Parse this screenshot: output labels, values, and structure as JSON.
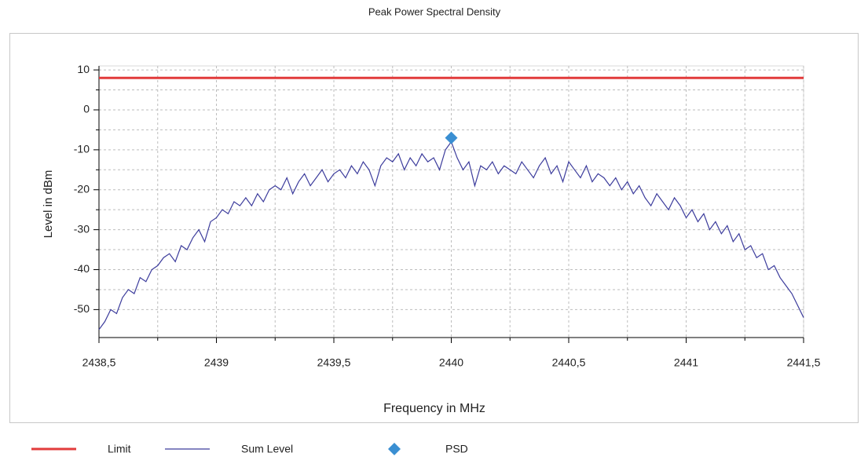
{
  "chart_data": {
    "type": "line",
    "title": "Peak Power Spectral Density",
    "xlabel": "Frequency in MHz",
    "ylabel": "Level in dBm",
    "xlim": [
      2438.5,
      2441.5
    ],
    "ylim": [
      -57,
      11
    ],
    "xticks": [
      {
        "value": 2438.5,
        "label": "2438,5"
      },
      2439,
      {
        "value": 2439.5,
        "label": "2439,5"
      },
      2440,
      {
        "value": 2440.5,
        "label": "2440,5"
      },
      2441,
      {
        "value": 2441.5,
        "label": "2441,5"
      }
    ],
    "yticks": [
      10,
      0,
      -10,
      -20,
      -30,
      -40,
      -50
    ],
    "grid": true,
    "legend": "bottom",
    "series": [
      {
        "name": "Limit",
        "color": "#e23b3b",
        "marker": "none",
        "x": [
          2438.5,
          2441.5
        ],
        "values": [
          8,
          8
        ]
      },
      {
        "name": "Sum Level",
        "color": "#3c3c9c",
        "marker": "none",
        "x": [
          2438.5,
          2438.525,
          2438.55,
          2438.575,
          2438.6,
          2438.625,
          2438.65,
          2438.675,
          2438.7,
          2438.725,
          2438.75,
          2438.775,
          2438.8,
          2438.825,
          2438.85,
          2438.875,
          2438.9,
          2438.925,
          2438.95,
          2438.975,
          2439,
          2439.025,
          2439.05,
          2439.075,
          2439.1,
          2439.125,
          2439.15,
          2439.175,
          2439.2,
          2439.225,
          2439.25,
          2439.275,
          2439.3,
          2439.325,
          2439.35,
          2439.375,
          2439.4,
          2439.425,
          2439.45,
          2439.475,
          2439.5,
          2439.525,
          2439.55,
          2439.575,
          2439.6,
          2439.625,
          2439.65,
          2439.675,
          2439.7,
          2439.725,
          2439.75,
          2439.775,
          2439.8,
          2439.825,
          2439.85,
          2439.875,
          2439.9,
          2439.925,
          2439.95,
          2439.975,
          2440,
          2440.025,
          2440.05,
          2440.075,
          2440.1,
          2440.125,
          2440.15,
          2440.175,
          2440.2,
          2440.225,
          2440.25,
          2440.275,
          2440.3,
          2440.325,
          2440.35,
          2440.375,
          2440.4,
          2440.425,
          2440.45,
          2440.475,
          2440.5,
          2440.525,
          2440.55,
          2440.575,
          2440.6,
          2440.625,
          2440.65,
          2440.675,
          2440.7,
          2440.725,
          2440.75,
          2440.775,
          2440.8,
          2440.825,
          2440.85,
          2440.875,
          2440.9,
          2440.925,
          2440.95,
          2440.975,
          2441,
          2441.025,
          2441.05,
          2441.075,
          2441.1,
          2441.125,
          2441.15,
          2441.175,
          2441.2,
          2441.225,
          2441.25,
          2441.275,
          2441.3,
          2441.325,
          2441.35,
          2441.375,
          2441.4,
          2441.425,
          2441.45,
          2441.475,
          2441.5
        ],
        "values": [
          -55,
          -53,
          -50,
          -51,
          -47,
          -45,
          -46,
          -42,
          -43,
          -40,
          -39,
          -37,
          -36,
          -38,
          -34,
          -35,
          -32,
          -30,
          -33,
          -28,
          -27,
          -25,
          -26,
          -23,
          -24,
          -22,
          -24,
          -21,
          -23,
          -20,
          -19,
          -20,
          -17,
          -21,
          -18,
          -16,
          -19,
          -17,
          -15,
          -18,
          -16,
          -15,
          -17,
          -14,
          -16,
          -13,
          -15,
          -19,
          -14,
          -12,
          -13,
          -11,
          -15,
          -12,
          -14,
          -11,
          -13,
          -12,
          -15,
          -10,
          -8,
          -12,
          -15,
          -13,
          -19,
          -14,
          -15,
          -13,
          -16,
          -14,
          -15,
          -16,
          -13,
          -15,
          -17,
          -14,
          -12,
          -16,
          -14,
          -18,
          -13,
          -15,
          -17,
          -14,
          -18,
          -16,
          -17,
          -19,
          -17,
          -20,
          -18,
          -21,
          -19,
          -22,
          -24,
          -21,
          -23,
          -25,
          -22,
          -24,
          -27,
          -25,
          -28,
          -26,
          -30,
          -28,
          -31,
          -29,
          -33,
          -31,
          -35,
          -34,
          -37,
          -36,
          -40,
          -39,
          -42,
          -44,
          -46,
          -49,
          -52
        ]
      },
      {
        "name": "PSD",
        "color": "#3a8fd2",
        "marker": "diamond",
        "x": [
          2440
        ],
        "values": [
          -7
        ]
      }
    ]
  }
}
